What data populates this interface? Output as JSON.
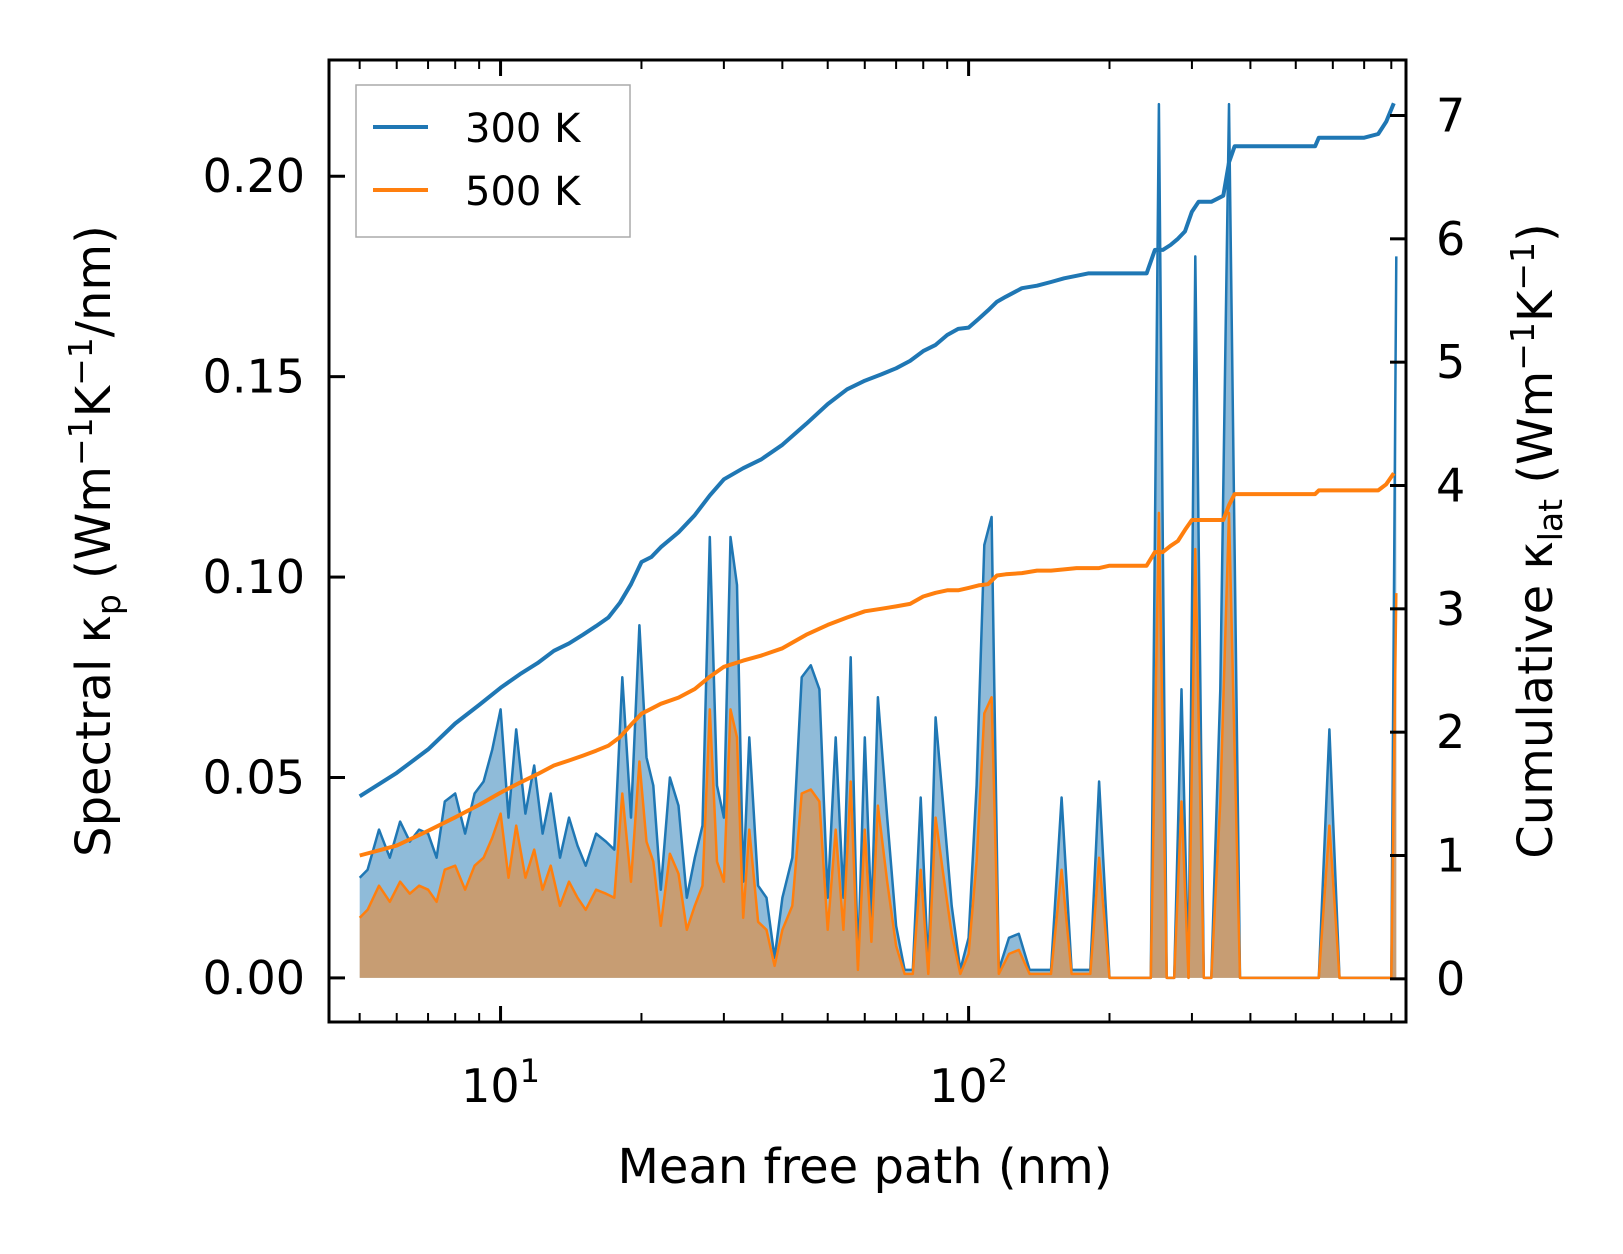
{
  "chart_data": {
    "type": "line",
    "xscale": "log",
    "xlabel": "Mean free path (nm)",
    "ylabel_left": {
      "prefix": "Spectral κ",
      "sub": "p",
      "units": " (Wm",
      "exp1": "−1",
      "k": "K",
      "exp2": "−1",
      "tail": "/nm)"
    },
    "ylabel_right": {
      "prefix": "Cumulative κ",
      "sub": "lat",
      "units": " (Wm",
      "exp1": "−1",
      "k": "K",
      "exp2": "−1",
      "tail": ")"
    },
    "xlim": [
      4.3,
      860
    ],
    "ylim_left": [
      -0.011,
      0.229
    ],
    "ylim_right": [
      -0.35,
      7.45
    ],
    "x_ticks": [
      {
        "base": "10",
        "exp": "1",
        "value": 10
      },
      {
        "base": "10",
        "exp": "2",
        "value": 100
      }
    ],
    "y_left_ticks": [
      {
        "label": "0.00",
        "value": 0
      },
      {
        "label": "0.05",
        "value": 0.05
      },
      {
        "label": "0.10",
        "value": 0.1
      },
      {
        "label": "0.15",
        "value": 0.15
      },
      {
        "label": "0.20",
        "value": 0.2
      }
    ],
    "y_right_ticks": [
      {
        "label": "0",
        "value": 0
      },
      {
        "label": "1",
        "value": 1
      },
      {
        "label": "2",
        "value": 2
      },
      {
        "label": "3",
        "value": 3
      },
      {
        "label": "4",
        "value": 4
      },
      {
        "label": "5",
        "value": 5
      },
      {
        "label": "6",
        "value": 6
      },
      {
        "label": "7",
        "value": 7
      }
    ],
    "legend": {
      "position": "top-left",
      "entries": [
        {
          "name": "300 K",
          "color": "#1f77b4"
        },
        {
          "name": "500 K",
          "color": "#ff7f0e"
        }
      ]
    },
    "series": [
      {
        "name": "300 K",
        "color": "#1f77b4",
        "spectral": {
          "x": [
            5.0,
            5.2,
            5.5,
            5.8,
            6.1,
            6.4,
            6.7,
            7.0,
            7.3,
            7.6,
            8.0,
            8.4,
            8.8,
            9.2,
            9.6,
            10.0,
            10.4,
            10.8,
            11.3,
            11.8,
            12.3,
            12.8,
            13.4,
            14.0,
            14.6,
            15.2,
            16.0,
            16.8,
            17.5,
            18.2,
            19.0,
            19.8,
            20.5,
            21.2,
            22.0,
            23.0,
            24.0,
            25.0,
            26.0,
            27.0,
            28.0,
            29.0,
            30.0,
            31.0,
            32.0,
            33.0,
            34.0,
            35.5,
            37.0,
            38.5,
            40.0,
            42.0,
            44.0,
            46.0,
            48.0,
            50.0,
            52.0,
            54.0,
            56.0,
            58.0,
            60.0,
            62.0,
            64.0,
            67.0,
            70.0,
            73.0,
            76.0,
            79.0,
            82.0,
            85.0,
            88.0,
            92.0,
            96.0,
            100.0,
            104.0,
            108.0,
            112.0,
            116.0,
            122.0,
            128.0,
            135.0,
            142.0,
            150.0,
            158.0,
            166.0,
            174.0,
            182.0,
            190.0,
            200.0,
            215.0,
            230.0,
            245.0,
            255.0,
            265.0,
            275.0,
            285.0,
            295.0,
            305.0,
            318.0,
            330.0,
            345.0,
            360.0,
            380.0,
            420.0,
            500.0,
            560.0,
            590.0,
            620.0,
            680.0,
            760.0,
            800.0,
            820.0
          ],
          "y": [
            0.025,
            0.027,
            0.037,
            0.03,
            0.039,
            0.034,
            0.037,
            0.036,
            0.03,
            0.044,
            0.046,
            0.036,
            0.046,
            0.049,
            0.057,
            0.067,
            0.04,
            0.062,
            0.041,
            0.053,
            0.036,
            0.046,
            0.03,
            0.04,
            0.033,
            0.028,
            0.036,
            0.034,
            0.032,
            0.075,
            0.04,
            0.088,
            0.055,
            0.048,
            0.022,
            0.05,
            0.043,
            0.02,
            0.03,
            0.038,
            0.11,
            0.048,
            0.04,
            0.11,
            0.098,
            0.024,
            0.06,
            0.023,
            0.02,
            0.005,
            0.02,
            0.03,
            0.075,
            0.078,
            0.072,
            0.02,
            0.06,
            0.02,
            0.08,
            0.003,
            0.06,
            0.015,
            0.07,
            0.04,
            0.013,
            0.002,
            0.002,
            0.045,
            0.002,
            0.065,
            0.045,
            0.018,
            0.002,
            0.01,
            0.048,
            0.108,
            0.115,
            0.002,
            0.01,
            0.011,
            0.002,
            0.002,
            0.002,
            0.045,
            0.002,
            0.002,
            0.002,
            0.049,
            0.0,
            0.0,
            0.0,
            0.0,
            0.218,
            0.0,
            0.0,
            0.072,
            0.0,
            0.18,
            0.0,
            0.0,
            0.072,
            0.218,
            0.0,
            0.0,
            0.0,
            0.0,
            0.062,
            0.0,
            0.0,
            0.0,
            0.0,
            0.18
          ]
        },
        "cumulative": {
          "x": [
            5.0,
            6.0,
            7.0,
            8.0,
            9.0,
            10.0,
            11.0,
            12.0,
            13.0,
            14.0,
            15.0,
            16.0,
            17.0,
            18.0,
            19.0,
            20.0,
            21.0,
            22.0,
            24.0,
            26.0,
            28.0,
            30.0,
            33.0,
            36.0,
            40.0,
            45.0,
            50.0,
            55.0,
            60.0,
            65.0,
            70.0,
            75.0,
            80.0,
            85.0,
            90.0,
            95.0,
            100.0,
            105.0,
            110.0,
            115.0,
            120.0,
            130.0,
            140.0,
            150.0,
            160.0,
            170.0,
            180.0,
            190.0,
            200.0,
            220.0,
            240.0,
            250.0,
            255.0,
            260.0,
            270.0,
            280.0,
            290.0,
            300.0,
            310.0,
            330.0,
            350.0,
            360.0,
            370.0,
            400.0,
            500.0,
            550.0,
            560.0,
            600.0,
            700.0,
            750.0,
            780.0,
            810.0
          ],
          "y": [
            1.48,
            1.67,
            1.86,
            2.07,
            2.22,
            2.36,
            2.47,
            2.56,
            2.66,
            2.72,
            2.79,
            2.86,
            2.93,
            3.05,
            3.2,
            3.38,
            3.42,
            3.5,
            3.62,
            3.76,
            3.92,
            4.05,
            4.14,
            4.21,
            4.33,
            4.5,
            4.66,
            4.78,
            4.85,
            4.9,
            4.95,
            5.01,
            5.09,
            5.14,
            5.22,
            5.27,
            5.28,
            5.35,
            5.42,
            5.49,
            5.53,
            5.6,
            5.62,
            5.65,
            5.68,
            5.7,
            5.72,
            5.72,
            5.72,
            5.72,
            5.72,
            5.91,
            5.91,
            5.91,
            5.95,
            6.0,
            6.06,
            6.22,
            6.3,
            6.3,
            6.35,
            6.62,
            6.75,
            6.75,
            6.75,
            6.75,
            6.82,
            6.82,
            6.82,
            6.85,
            6.95,
            7.1
          ]
        }
      },
      {
        "name": "500 K",
        "color": "#ff7f0e",
        "spectral": {
          "x": [
            5.0,
            5.2,
            5.5,
            5.8,
            6.1,
            6.4,
            6.7,
            7.0,
            7.3,
            7.6,
            8.0,
            8.4,
            8.8,
            9.2,
            9.6,
            10.0,
            10.4,
            10.8,
            11.3,
            11.8,
            12.3,
            12.8,
            13.4,
            14.0,
            14.6,
            15.2,
            16.0,
            16.8,
            17.5,
            18.2,
            19.0,
            19.8,
            20.5,
            21.2,
            22.0,
            23.0,
            24.0,
            25.0,
            26.0,
            27.0,
            28.0,
            29.0,
            30.0,
            31.0,
            32.0,
            33.0,
            34.0,
            35.5,
            37.0,
            38.5,
            40.0,
            42.0,
            44.0,
            46.0,
            48.0,
            50.0,
            52.0,
            54.0,
            56.0,
            58.0,
            60.0,
            62.0,
            64.0,
            67.0,
            70.0,
            73.0,
            76.0,
            79.0,
            82.0,
            85.0,
            88.0,
            92.0,
            96.0,
            100.0,
            104.0,
            108.0,
            112.0,
            116.0,
            122.0,
            128.0,
            135.0,
            142.0,
            150.0,
            158.0,
            166.0,
            174.0,
            182.0,
            190.0,
            200.0,
            215.0,
            230.0,
            245.0,
            255.0,
            265.0,
            275.0,
            285.0,
            295.0,
            305.0,
            318.0,
            330.0,
            345.0,
            360.0,
            380.0,
            420.0,
            500.0,
            560.0,
            590.0,
            620.0,
            680.0,
            760.0,
            800.0,
            820.0
          ],
          "y": [
            0.015,
            0.017,
            0.023,
            0.019,
            0.024,
            0.021,
            0.023,
            0.022,
            0.019,
            0.027,
            0.028,
            0.022,
            0.028,
            0.03,
            0.035,
            0.041,
            0.025,
            0.038,
            0.025,
            0.032,
            0.022,
            0.028,
            0.018,
            0.024,
            0.02,
            0.017,
            0.022,
            0.021,
            0.02,
            0.046,
            0.024,
            0.054,
            0.034,
            0.029,
            0.013,
            0.031,
            0.026,
            0.012,
            0.018,
            0.023,
            0.067,
            0.029,
            0.024,
            0.067,
            0.06,
            0.015,
            0.037,
            0.014,
            0.012,
            0.003,
            0.012,
            0.018,
            0.046,
            0.047,
            0.044,
            0.012,
            0.037,
            0.012,
            0.049,
            0.002,
            0.037,
            0.009,
            0.043,
            0.024,
            0.008,
            0.001,
            0.001,
            0.027,
            0.001,
            0.04,
            0.027,
            0.011,
            0.001,
            0.006,
            0.029,
            0.066,
            0.07,
            0.001,
            0.006,
            0.007,
            0.001,
            0.001,
            0.001,
            0.027,
            0.001,
            0.001,
            0.001,
            0.03,
            0.0,
            0.0,
            0.0,
            0.0,
            0.116,
            0.0,
            0.0,
            0.044,
            0.0,
            0.107,
            0.0,
            0.0,
            0.044,
            0.116,
            0.0,
            0.0,
            0.0,
            0.0,
            0.038,
            0.0,
            0.0,
            0.0,
            0.0,
            0.096
          ]
        },
        "cumulative": {
          "x": [
            5.0,
            6.0,
            7.0,
            8.0,
            9.0,
            10.0,
            11.0,
            12.0,
            13.0,
            14.0,
            15.0,
            16.0,
            17.0,
            18.0,
            19.0,
            20.0,
            21.0,
            22.0,
            24.0,
            26.0,
            28.0,
            30.0,
            33.0,
            36.0,
            40.0,
            45.0,
            50.0,
            55.0,
            60.0,
            65.0,
            70.0,
            75.0,
            80.0,
            85.0,
            90.0,
            95.0,
            100.0,
            105.0,
            110.0,
            115.0,
            120.0,
            130.0,
            140.0,
            150.0,
            160.0,
            170.0,
            180.0,
            190.0,
            200.0,
            220.0,
            240.0,
            250.0,
            255.0,
            260.0,
            270.0,
            280.0,
            290.0,
            300.0,
            310.0,
            330.0,
            350.0,
            360.0,
            370.0,
            400.0,
            500.0,
            550.0,
            560.0,
            600.0,
            700.0,
            750.0,
            780.0,
            810.0
          ],
          "y": [
            1.0,
            1.08,
            1.2,
            1.31,
            1.41,
            1.51,
            1.59,
            1.66,
            1.73,
            1.77,
            1.81,
            1.85,
            1.89,
            1.96,
            2.06,
            2.15,
            2.19,
            2.23,
            2.28,
            2.35,
            2.45,
            2.53,
            2.58,
            2.62,
            2.68,
            2.79,
            2.87,
            2.93,
            2.98,
            3.0,
            3.02,
            3.04,
            3.1,
            3.13,
            3.15,
            3.15,
            3.17,
            3.19,
            3.2,
            3.27,
            3.28,
            3.29,
            3.31,
            3.31,
            3.32,
            3.33,
            3.33,
            3.33,
            3.35,
            3.35,
            3.35,
            3.46,
            3.46,
            3.46,
            3.51,
            3.55,
            3.64,
            3.72,
            3.72,
            3.72,
            3.72,
            3.84,
            3.93,
            3.93,
            3.93,
            3.93,
            3.96,
            3.96,
            3.96,
            3.96,
            4.01,
            4.1
          ]
        }
      }
    ]
  }
}
